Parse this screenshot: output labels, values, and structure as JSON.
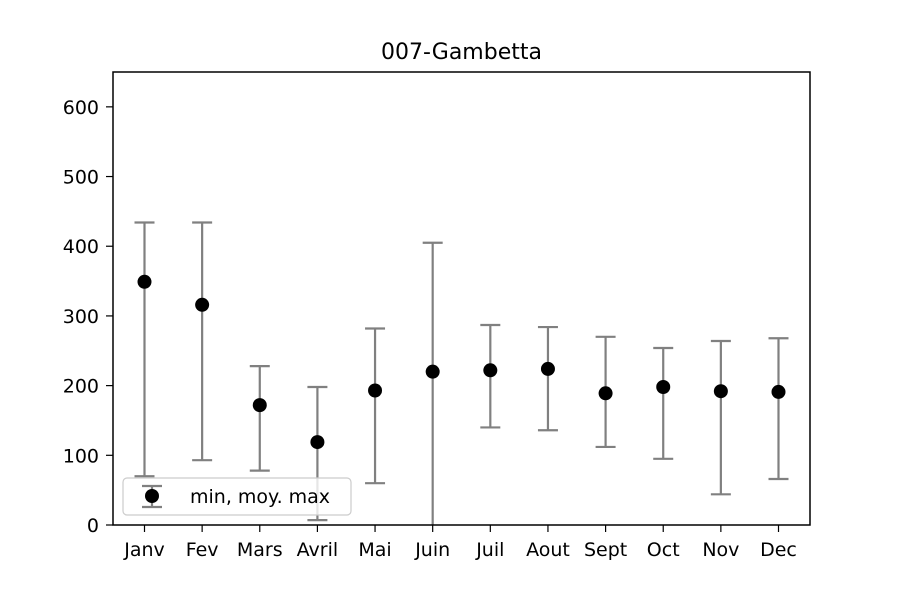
{
  "chart_data": {
    "type": "errorbar",
    "title": "007-Gambetta",
    "xlabel": "",
    "ylabel": "",
    "categories": [
      "Janv",
      "Fev",
      "Mars",
      "Avril",
      "Mai",
      "Juin",
      "Juil",
      "Aout",
      "Sept",
      "Oct",
      "Nov",
      "Dec"
    ],
    "series": [
      {
        "name": "min, moy. max",
        "mean": [
          349,
          316,
          172,
          119,
          193,
          220,
          222,
          224,
          189,
          198,
          192,
          191
        ],
        "min": [
          70,
          93,
          78,
          7,
          60,
          0,
          140,
          136,
          112,
          95,
          44,
          66
        ],
        "max": [
          434,
          434,
          228,
          198,
          282,
          405,
          287,
          284,
          270,
          254,
          264,
          268
        ]
      }
    ],
    "ylim": [
      0,
      650
    ],
    "yticks": [
      0,
      100,
      200,
      300,
      400,
      500,
      600
    ],
    "grid": false,
    "legend_position": "lower-left",
    "colors": {
      "marker": "#000000",
      "errorbar": "#808080"
    }
  }
}
